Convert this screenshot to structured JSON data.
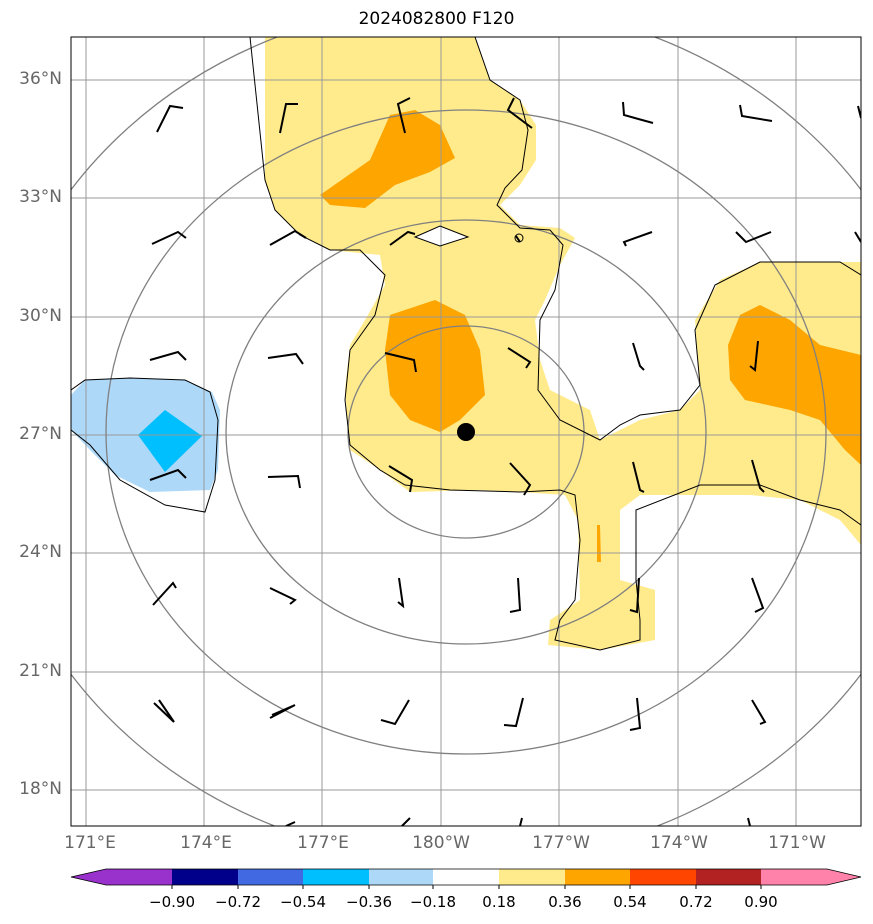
{
  "title": "2024082800 F120",
  "map": {
    "lat_labels": [
      "36°N",
      "33°N",
      "30°N",
      "27°N",
      "24°N",
      "21°N",
      "18°N"
    ],
    "lon_labels": [
      "171°E",
      "174°E",
      "177°E",
      "180°W",
      "177°W",
      "174°W",
      "171°W"
    ],
    "storm_center": {
      "lat": 27.1,
      "lon": -179.4
    }
  },
  "colorbar": {
    "ticks": [
      "−0.90",
      "−0.72",
      "−0.54",
      "−0.36",
      "−0.18",
      "0.18",
      "0.36",
      "0.54",
      "0.72",
      "0.90"
    ],
    "colors": [
      "#9932cc",
      "#00008b",
      "#4169e1",
      "#00bfff",
      "#add8f8",
      "#ffffff",
      "#ffeb8c",
      "#ffa500",
      "#ff4500",
      "#b22222",
      "#ff82ab"
    ]
  }
}
